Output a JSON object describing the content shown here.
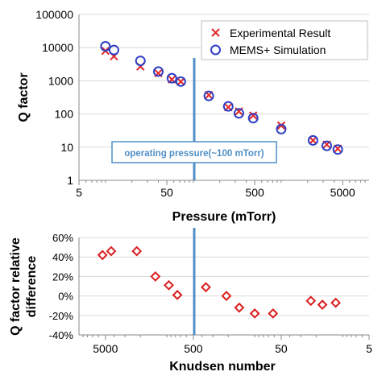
{
  "colors": {
    "experimental": "#e3262a",
    "simulation": "#2f3fc4",
    "operating_line": "#4f8fc6",
    "diff_marker": "#d91e1e",
    "grid": "#d9d9d9",
    "text": "#000000"
  },
  "chart_data": [
    {
      "type": "scatter",
      "xlabel": "Pressure (mTorr)",
      "ylabel": "Q factor",
      "x_scale": "log",
      "y_scale": "log",
      "xlim": [
        5,
        10000
      ],
      "ylim": [
        1,
        100000
      ],
      "x_ticks": [
        "5",
        "50",
        "500",
        "5000"
      ],
      "y_ticks": [
        "1",
        "10",
        "100",
        "1000",
        "10000",
        "100000"
      ],
      "grid": "horizontal",
      "legend_position": "top-right",
      "series": [
        {
          "name": "Experimental Result",
          "marker": "x",
          "x": [
            10,
            12.5,
            25,
            40,
            57,
            72,
            150,
            250,
            330,
            480,
            1000,
            2300,
            3300,
            4400
          ],
          "y": [
            8000,
            5500,
            2700,
            1700,
            1100,
            950,
            370,
            160,
            120,
            90,
            45,
            16,
            12,
            9
          ]
        },
        {
          "name": "MEMS+ Simulation",
          "marker": "circle",
          "x": [
            10,
            12.5,
            25,
            40,
            57,
            72,
            150,
            250,
            330,
            480,
            1000,
            2300,
            3300,
            4400
          ],
          "y": [
            11000,
            8500,
            4000,
            1900,
            1200,
            950,
            350,
            170,
            105,
            75,
            35,
            16,
            11,
            8.5
          ]
        }
      ],
      "annotation": {
        "text": "operating  pressure(~100 mTorr)",
        "x": 100
      }
    },
    {
      "type": "scatter",
      "xlabel": "Knudsen number",
      "ylabel": "Q factor relative difference",
      "x_scale": "log",
      "x_reversed": true,
      "xlim": [
        10000,
        5
      ],
      "ylim": [
        -40,
        60
      ],
      "x_ticks": [
        "5000",
        "500",
        "50",
        "5"
      ],
      "y_ticks": [
        "-40%",
        "-20%",
        "0%",
        "20%",
        "40%",
        "60%"
      ],
      "grid": "horizontal",
      "series": [
        {
          "marker": "diamond",
          "x": [
            5400,
            4300,
            2200,
            1350,
            950,
            760,
            360,
            210,
            150,
            100,
            62,
            23,
            17,
            12
          ],
          "y": [
            42,
            46,
            46,
            20,
            11,
            1,
            9,
            0,
            -12,
            -18,
            -18,
            -5,
            -9,
            -7
          ]
        }
      ],
      "operating_line_x": 500
    }
  ]
}
